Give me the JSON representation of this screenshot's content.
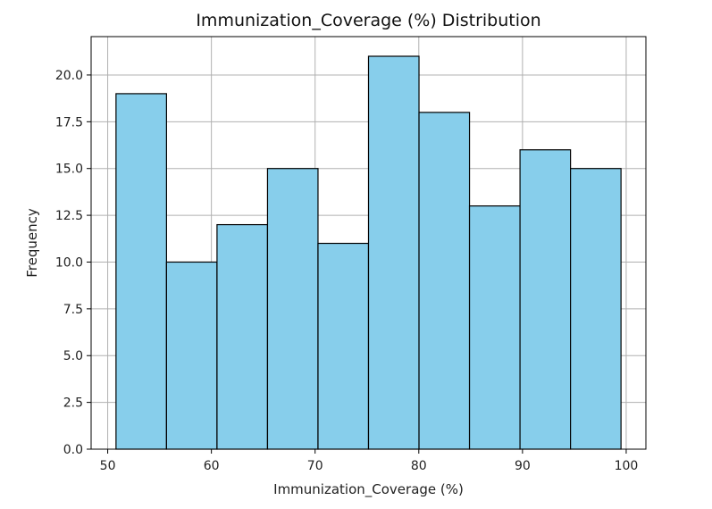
{
  "chart_data": {
    "type": "bar",
    "title": "Immunization_Coverage (%) Distribution",
    "xlabel": "Immunization_Coverage (%)",
    "ylabel": "Frequency",
    "bin_edges": [
      50.8,
      55.67,
      60.54,
      65.41,
      70.28,
      75.15,
      80.02,
      84.89,
      89.76,
      94.63,
      99.5
    ],
    "values": [
      19,
      10,
      12,
      15,
      11,
      21,
      18,
      13,
      16,
      15
    ],
    "xlim": [
      48.4,
      101.9
    ],
    "ylim": [
      0,
      22.05
    ],
    "x_ticks": [
      50,
      60,
      70,
      80,
      90,
      100
    ],
    "x_tick_labels": [
      "50",
      "60",
      "70",
      "80",
      "90",
      "100"
    ],
    "y_ticks": [
      0,
      2.5,
      5,
      7.5,
      10,
      12.5,
      15,
      17.5,
      20
    ],
    "y_tick_labels": [
      "0.0",
      "2.5",
      "5.0",
      "7.5",
      "10.0",
      "12.5",
      "15.0",
      "17.5",
      "20.0"
    ],
    "grid": true,
    "legend": "none",
    "colors": {
      "bar_fill": "#87ceeb",
      "bar_edge": "#000000",
      "grid": "#b0b0b0",
      "axes": "#000000"
    }
  }
}
